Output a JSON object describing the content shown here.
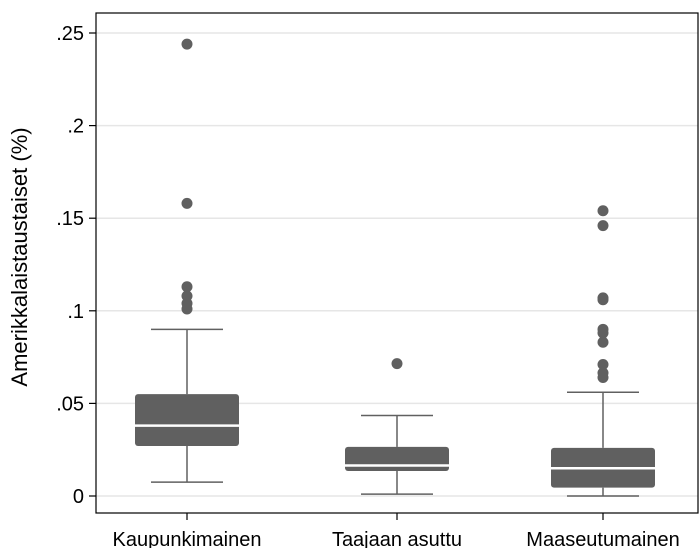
{
  "chart_data": {
    "type": "box",
    "title": "",
    "xlabel": "",
    "ylabel": "Amerikkalaistaustaiset (%)",
    "ylim": [
      0,
      0.25
    ],
    "yticks": [
      {
        "value": 0,
        "label": "0"
      },
      {
        "value": 0.05,
        "label": ".05"
      },
      {
        "value": 0.1,
        "label": ".1"
      },
      {
        "value": 0.15,
        "label": ".15"
      },
      {
        "value": 0.2,
        "label": ".2"
      },
      {
        "value": 0.25,
        "label": ".25"
      }
    ],
    "grid": true,
    "categories": [
      "Kaupunkimainen",
      "Taajaan asuttu",
      "Maaseutumainen"
    ],
    "boxes": [
      {
        "category": "Kaupunkimainen",
        "whisker_low": 0.0075,
        "q1": 0.027,
        "median": 0.038,
        "q3": 0.055,
        "whisker_high": 0.09,
        "outliers": [
          0.244,
          0.158,
          0.113,
          0.108,
          0.104,
          0.101
        ]
      },
      {
        "category": "Taajaan asuttu",
        "whisker_low": 0.001,
        "q1": 0.0135,
        "median": 0.0165,
        "q3": 0.0265,
        "whisker_high": 0.0435,
        "outliers": [
          0.0715
        ]
      },
      {
        "category": "Maaseutumainen",
        "whisker_low": 0.0,
        "q1": 0.0045,
        "median": 0.015,
        "q3": 0.026,
        "whisker_high": 0.056,
        "outliers": [
          0.154,
          0.146,
          0.107,
          0.106,
          0.09,
          0.088,
          0.083,
          0.071,
          0.0665,
          0.064
        ]
      }
    ],
    "colors": {
      "box": "#606060",
      "median": "#ffffff",
      "grid": "#e6e6e6",
      "axis": "#000000"
    }
  }
}
